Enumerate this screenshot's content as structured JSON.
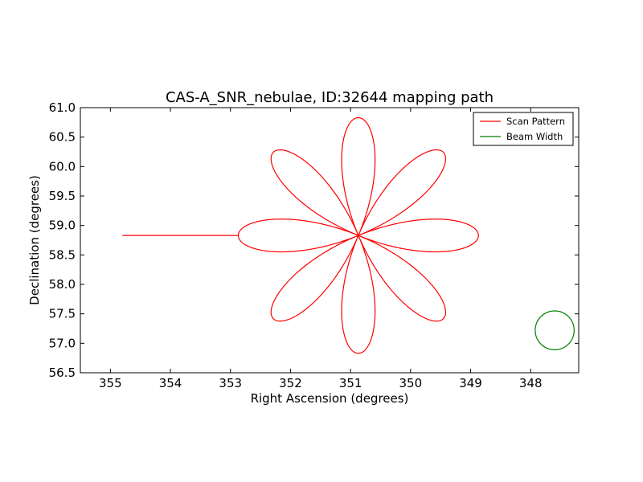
{
  "chart_data": {
    "type": "line",
    "title": "CAS-A_SNR_nebulae, ID:32644 mapping path",
    "xlabel": "Right Ascension (degrees)",
    "ylabel": "Declination (degrees)",
    "xlim": [
      355.5,
      347.2
    ],
    "ylim": [
      56.5,
      61.0
    ],
    "x_ticks": [
      355,
      354,
      353,
      352,
      351,
      350,
      349,
      348
    ],
    "y_ticks": [
      56.5,
      57.0,
      57.5,
      58.0,
      58.5,
      59.0,
      59.5,
      60.0,
      60.5,
      61.0
    ],
    "x_tick_labels": [
      "355",
      "354",
      "353",
      "352",
      "351",
      "350",
      "349",
      "348"
    ],
    "y_tick_labels": [
      "56.5",
      "57.0",
      "57.5",
      "58.0",
      "58.5",
      "59.0",
      "59.5",
      "60.0",
      "60.5",
      "61.0"
    ],
    "grid": false,
    "legend_position": "top-right",
    "series": [
      {
        "name": "Scan Pattern",
        "color": "#ff0000",
        "shape": "rose",
        "center": [
          350.87,
          58.83
        ],
        "petals": 8,
        "petal_extent_deg": 2.0,
        "start_point": [
          354.8,
          58.83
        ]
      },
      {
        "name": "Beam Width",
        "color": "#008000",
        "shape": "circle",
        "center": [
          347.6,
          57.22
        ],
        "radius_y_deg": 0.33
      }
    ]
  }
}
